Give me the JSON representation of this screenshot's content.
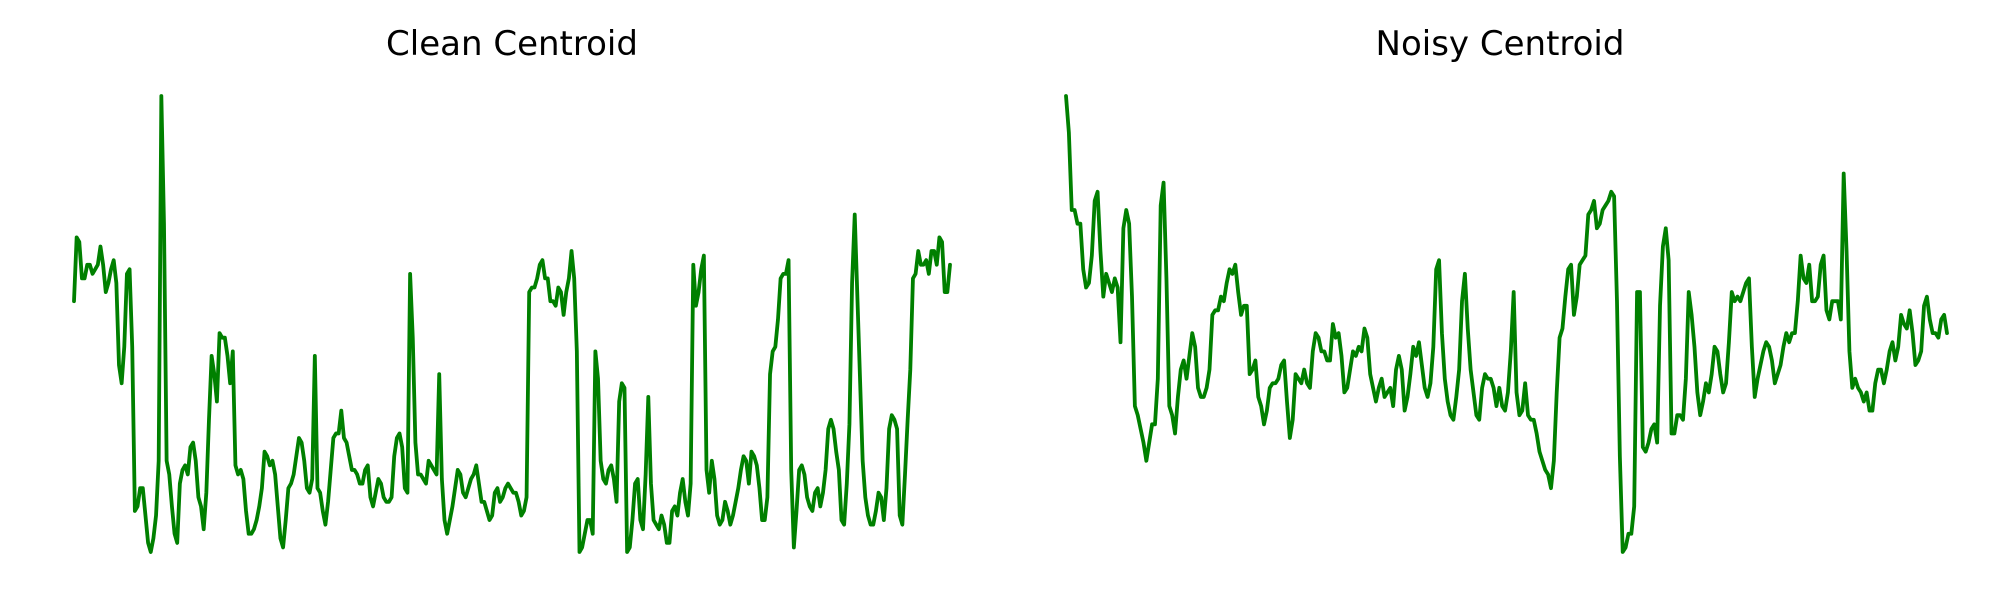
{
  "chart_data": [
    {
      "type": "line",
      "title": "Clean Centroid",
      "xlabel": "",
      "ylabel": "",
      "axes_visible": false,
      "grid": false,
      "ylim": [
        0,
        1
      ],
      "series": [
        {
          "color": "#008000",
          "values": [
            0.55,
            0.69,
            0.68,
            0.6,
            0.6,
            0.63,
            0.63,
            0.61,
            0.62,
            0.63,
            0.67,
            0.63,
            0.57,
            0.59,
            0.62,
            0.64,
            0.59,
            0.41,
            0.37,
            0.45,
            0.61,
            0.62,
            0.45,
            0.09,
            0.1,
            0.14,
            0.14,
            0.08,
            0.02,
            0.0,
            0.03,
            0.08,
            0.2,
            1.0,
            0.72,
            0.2,
            0.17,
            0.1,
            0.04,
            0.02,
            0.15,
            0.18,
            0.19,
            0.17,
            0.23,
            0.24,
            0.2,
            0.12,
            0.1,
            0.05,
            0.13,
            0.29,
            0.43,
            0.39,
            0.33,
            0.48,
            0.47,
            0.47,
            0.43,
            0.37,
            0.44,
            0.19,
            0.17,
            0.18,
            0.16,
            0.09,
            0.04,
            0.04,
            0.05,
            0.07,
            0.1,
            0.14,
            0.22,
            0.21,
            0.19,
            0.2,
            0.17,
            0.1,
            0.03,
            0.01,
            0.07,
            0.14,
            0.15,
            0.17,
            0.21,
            0.25,
            0.24,
            0.2,
            0.14,
            0.13,
            0.16,
            0.43,
            0.14,
            0.13,
            0.09,
            0.06,
            0.11,
            0.18,
            0.25,
            0.26,
            0.26,
            0.31,
            0.25,
            0.24,
            0.21,
            0.18,
            0.18,
            0.17,
            0.15,
            0.15,
            0.18,
            0.19,
            0.12,
            0.1,
            0.13,
            0.16,
            0.15,
            0.12,
            0.11,
            0.11,
            0.12,
            0.21,
            0.25,
            0.26,
            0.23,
            0.14,
            0.13,
            0.61,
            0.47,
            0.24,
            0.17,
            0.17,
            0.16,
            0.15,
            0.2,
            0.19,
            0.18,
            0.17,
            0.39,
            0.16,
            0.07,
            0.04,
            0.07,
            0.1,
            0.14,
            0.18,
            0.17,
            0.13,
            0.12,
            0.14,
            0.16,
            0.17,
            0.19,
            0.15,
            0.11,
            0.11,
            0.09,
            0.07,
            0.08,
            0.13,
            0.14,
            0.11,
            0.12,
            0.14,
            0.15,
            0.14,
            0.13,
            0.13,
            0.11,
            0.08,
            0.09,
            0.12,
            0.57,
            0.58,
            0.58,
            0.6,
            0.63,
            0.64,
            0.6,
            0.6,
            0.55,
            0.55,
            0.54,
            0.58,
            0.57,
            0.52,
            0.57,
            0.6,
            0.66,
            0.6,
            0.44,
            0.0,
            0.01,
            0.04,
            0.07,
            0.07,
            0.04,
            0.44,
            0.38,
            0.2,
            0.16,
            0.15,
            0.18,
            0.19,
            0.16,
            0.11,
            0.33,
            0.37,
            0.36,
            0.0,
            0.01,
            0.07,
            0.15,
            0.16,
            0.07,
            0.05,
            0.17,
            0.34,
            0.15,
            0.07,
            0.06,
            0.05,
            0.08,
            0.06,
            0.02,
            0.02,
            0.09,
            0.1,
            0.08,
            0.13,
            0.16,
            0.11,
            0.08,
            0.15,
            0.63,
            0.54,
            0.57,
            0.62,
            0.65,
            0.18,
            0.13,
            0.2,
            0.16,
            0.08,
            0.06,
            0.07,
            0.11,
            0.09,
            0.06,
            0.08,
            0.11,
            0.14,
            0.18,
            0.21,
            0.2,
            0.15,
            0.22,
            0.21,
            0.19,
            0.14,
            0.07,
            0.07,
            0.12,
            0.39,
            0.44,
            0.45,
            0.51,
            0.6,
            0.61,
            0.61,
            0.64,
            0.18,
            0.01,
            0.09,
            0.18,
            0.19,
            0.17,
            0.12,
            0.1,
            0.09,
            0.13,
            0.14,
            0.1,
            0.13,
            0.18,
            0.27,
            0.29,
            0.27,
            0.22,
            0.18,
            0.07,
            0.06,
            0.15,
            0.28,
            0.59,
            0.74,
            0.56,
            0.38,
            0.2,
            0.12,
            0.08,
            0.06,
            0.06,
            0.09,
            0.13,
            0.12,
            0.07,
            0.14,
            0.27,
            0.3,
            0.29,
            0.27,
            0.08,
            0.06,
            0.17,
            0.29,
            0.4,
            0.6,
            0.61,
            0.66,
            0.63,
            0.63,
            0.64,
            0.61,
            0.66,
            0.66,
            0.63,
            0.69,
            0.68,
            0.57,
            0.57,
            0.63
          ]
        }
      ]
    },
    {
      "type": "line",
      "title": "Noisy Centroid",
      "xlabel": "",
      "ylabel": "",
      "axes_visible": false,
      "grid": false,
      "ylim": [
        0,
        1
      ],
      "series": [
        {
          "color": "#008000",
          "values": [
            1.0,
            0.92,
            0.75,
            0.75,
            0.72,
            0.72,
            0.62,
            0.58,
            0.59,
            0.65,
            0.77,
            0.79,
            0.66,
            0.56,
            0.61,
            0.59,
            0.57,
            0.6,
            0.58,
            0.46,
            0.71,
            0.75,
            0.72,
            0.56,
            0.32,
            0.3,
            0.27,
            0.24,
            0.2,
            0.24,
            0.28,
            0.28,
            0.38,
            0.76,
            0.81,
            0.6,
            0.32,
            0.3,
            0.26,
            0.34,
            0.4,
            0.42,
            0.38,
            0.43,
            0.48,
            0.45,
            0.36,
            0.34,
            0.34,
            0.36,
            0.4,
            0.52,
            0.53,
            0.53,
            0.56,
            0.55,
            0.59,
            0.62,
            0.61,
            0.63,
            0.57,
            0.52,
            0.54,
            0.54,
            0.39,
            0.4,
            0.42,
            0.34,
            0.32,
            0.28,
            0.31,
            0.36,
            0.37,
            0.37,
            0.38,
            0.41,
            0.42,
            0.33,
            0.25,
            0.29,
            0.39,
            0.38,
            0.37,
            0.4,
            0.37,
            0.36,
            0.44,
            0.48,
            0.47,
            0.44,
            0.44,
            0.42,
            0.42,
            0.5,
            0.47,
            0.48,
            0.43,
            0.35,
            0.36,
            0.4,
            0.44,
            0.43,
            0.45,
            0.44,
            0.49,
            0.47,
            0.39,
            0.36,
            0.33,
            0.36,
            0.38,
            0.34,
            0.35,
            0.36,
            0.32,
            0.4,
            0.43,
            0.4,
            0.31,
            0.34,
            0.39,
            0.45,
            0.43,
            0.46,
            0.41,
            0.36,
            0.34,
            0.37,
            0.45,
            0.62,
            0.64,
            0.48,
            0.38,
            0.33,
            0.3,
            0.29,
            0.34,
            0.4,
            0.55,
            0.61,
            0.49,
            0.4,
            0.35,
            0.3,
            0.29,
            0.36,
            0.39,
            0.38,
            0.38,
            0.36,
            0.32,
            0.36,
            0.32,
            0.31,
            0.35,
            0.44,
            0.57,
            0.35,
            0.3,
            0.31,
            0.37,
            0.3,
            0.29,
            0.29,
            0.26,
            0.22,
            0.2,
            0.18,
            0.17,
            0.14,
            0.2,
            0.35,
            0.47,
            0.49,
            0.56,
            0.62,
            0.63,
            0.52,
            0.56,
            0.63,
            0.64,
            0.65,
            0.74,
            0.75,
            0.77,
            0.71,
            0.72,
            0.75,
            0.76,
            0.77,
            0.79,
            0.78,
            0.55,
            0.21,
            0.0,
            0.01,
            0.04,
            0.04,
            0.1,
            0.57,
            0.57,
            0.23,
            0.22,
            0.24,
            0.27,
            0.28,
            0.24,
            0.54,
            0.67,
            0.71,
            0.64,
            0.26,
            0.26,
            0.3,
            0.3,
            0.29,
            0.38,
            0.57,
            0.52,
            0.45,
            0.35,
            0.3,
            0.33,
            0.37,
            0.35,
            0.39,
            0.45,
            0.44,
            0.39,
            0.35,
            0.37,
            0.46,
            0.57,
            0.55,
            0.56,
            0.55,
            0.57,
            0.59,
            0.6,
            0.45,
            0.34,
            0.38,
            0.41,
            0.44,
            0.46,
            0.45,
            0.42,
            0.37,
            0.39,
            0.41,
            0.45,
            0.48,
            0.46,
            0.48,
            0.48,
            0.55,
            0.65,
            0.6,
            0.59,
            0.63,
            0.55,
            0.55,
            0.56,
            0.63,
            0.65,
            0.53,
            0.51,
            0.55,
            0.55,
            0.55,
            0.51,
            0.83,
            0.66,
            0.44,
            0.36,
            0.38,
            0.36,
            0.35,
            0.33,
            0.35,
            0.31,
            0.31,
            0.37,
            0.4,
            0.4,
            0.37,
            0.4,
            0.44,
            0.46,
            0.42,
            0.45,
            0.52,
            0.5,
            0.49,
            0.53,
            0.48,
            0.41,
            0.42,
            0.44,
            0.54,
            0.56,
            0.51,
            0.48,
            0.48,
            0.47,
            0.51,
            0.52,
            0.48
          ]
        }
      ]
    }
  ]
}
